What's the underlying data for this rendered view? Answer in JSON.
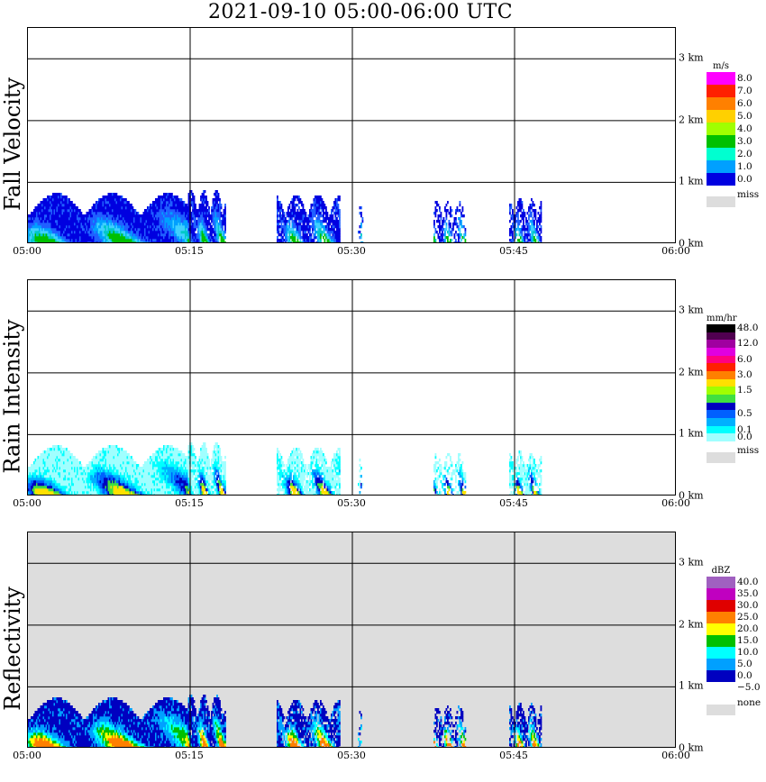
{
  "title": "2021-09-10   05:00-06:00 UTC",
  "chart_data": [
    {
      "type": "heatmap",
      "title": "Fall Velocity",
      "xlabel": "",
      "x_ticks": [
        "05:00",
        "05:15",
        "05:30",
        "05:45",
        "06:00"
      ],
      "y_ticks": [
        "0 km",
        "1 km",
        "2 km",
        "3 km"
      ],
      "xlim": [
        0,
        60
      ],
      "ylim": [
        0,
        3.5
      ],
      "grid": true,
      "background": "#ffffff",
      "legend": {
        "unit": "m/s",
        "placement": "right",
        "entries": [
          {
            "label": "8.0",
            "color": "#ff00ff"
          },
          {
            "label": "7.0",
            "color": "#ff2000"
          },
          {
            "label": "6.0",
            "color": "#ff8000"
          },
          {
            "label": "5.0",
            "color": "#ffd000"
          },
          {
            "label": "4.0",
            "color": "#a0ff00"
          },
          {
            "label": "3.0",
            "color": "#00c000"
          },
          {
            "label": "2.0",
            "color": "#00ffd0"
          },
          {
            "label": "1.0",
            "color": "#00a0ff"
          },
          {
            "label": "0.0",
            "color": "#0000e0"
          }
        ],
        "missing": {
          "label": "miss",
          "color": "#dddddd"
        }
      },
      "echo_colors": [
        "#0000e0",
        "#2060ff",
        "#00a0ff",
        "#40d0ff",
        "#00c8c8",
        "#00c000"
      ],
      "echo_intensity_scale": 1.0
    },
    {
      "type": "heatmap",
      "title": "Rain Intensity",
      "xlabel": "",
      "x_ticks": [
        "05:00",
        "05:15",
        "05:30",
        "05:45",
        "06:00"
      ],
      "y_ticks": [
        "0 km",
        "1 km",
        "2 km",
        "3 km"
      ],
      "xlim": [
        0,
        60
      ],
      "ylim": [
        0,
        3.5
      ],
      "grid": true,
      "background": "#ffffff",
      "legend": {
        "unit": "mm/hr",
        "placement": "right",
        "entries": [
          {
            "label": "48.0",
            "color": "#000000"
          },
          {
            "label": "",
            "color": "#500050"
          },
          {
            "label": "12.0",
            "color": "#a000a0"
          },
          {
            "label": "",
            "color": "#e000e0"
          },
          {
            "label": "6.0",
            "color": "#ff0080"
          },
          {
            "label": "",
            "color": "#ff2000"
          },
          {
            "label": "3.0",
            "color": "#ff8000"
          },
          {
            "label": "",
            "color": "#ffe000"
          },
          {
            "label": "1.5",
            "color": "#a0ff00"
          },
          {
            "label": "",
            "color": "#40e040"
          },
          {
            "label": "",
            "color": "#0000c0"
          },
          {
            "label": "0.5",
            "color": "#0060ff"
          },
          {
            "label": "",
            "color": "#00b0ff"
          },
          {
            "label": "0.1",
            "color": "#00ffff"
          },
          {
            "label": "0.0",
            "color": "#a0ffff"
          }
        ],
        "missing": {
          "label": "miss",
          "color": "#dddddd"
        }
      },
      "echo_colors": [
        "#a0ffff",
        "#00ffff",
        "#00b0ff",
        "#0060ff",
        "#0000c0",
        "#40e040",
        "#ffe000"
      ],
      "echo_intensity_scale": 1.0
    },
    {
      "type": "heatmap",
      "title": "Reflectivity",
      "xlabel": "",
      "x_ticks": [
        "05:00",
        "05:15",
        "05:30",
        "05:45",
        "06:00"
      ],
      "y_ticks": [
        "0 km",
        "1 km",
        "2 km",
        "3 km"
      ],
      "xlim": [
        0,
        60
      ],
      "ylim": [
        0,
        3.5
      ],
      "grid": true,
      "background": "#dddddd",
      "legend": {
        "unit": "dBZ",
        "placement": "right",
        "entries": [
          {
            "label": "40.0",
            "color": "#a060c0"
          },
          {
            "label": "35.0",
            "color": "#c000c0"
          },
          {
            "label": "30.0",
            "color": "#e00000"
          },
          {
            "label": "25.0",
            "color": "#ff8000"
          },
          {
            "label": "20.0",
            "color": "#ffff00"
          },
          {
            "label": "15.0",
            "color": "#00c000"
          },
          {
            "label": "10.0",
            "color": "#00ffff"
          },
          {
            "label": "5.0",
            "color": "#00a0ff"
          },
          {
            "label": "0.0",
            "color": "#0000c0"
          },
          {
            "label": "−5.0",
            "color": "#ffffff"
          }
        ],
        "missing": {
          "label": "none",
          "color": "#dddddd"
        }
      },
      "echo_colors": [
        "#0000c0",
        "#00a0ff",
        "#00ffff",
        "#00c000",
        "#ffff00",
        "#ff8000"
      ],
      "echo_intensity_scale": 1.0
    }
  ]
}
